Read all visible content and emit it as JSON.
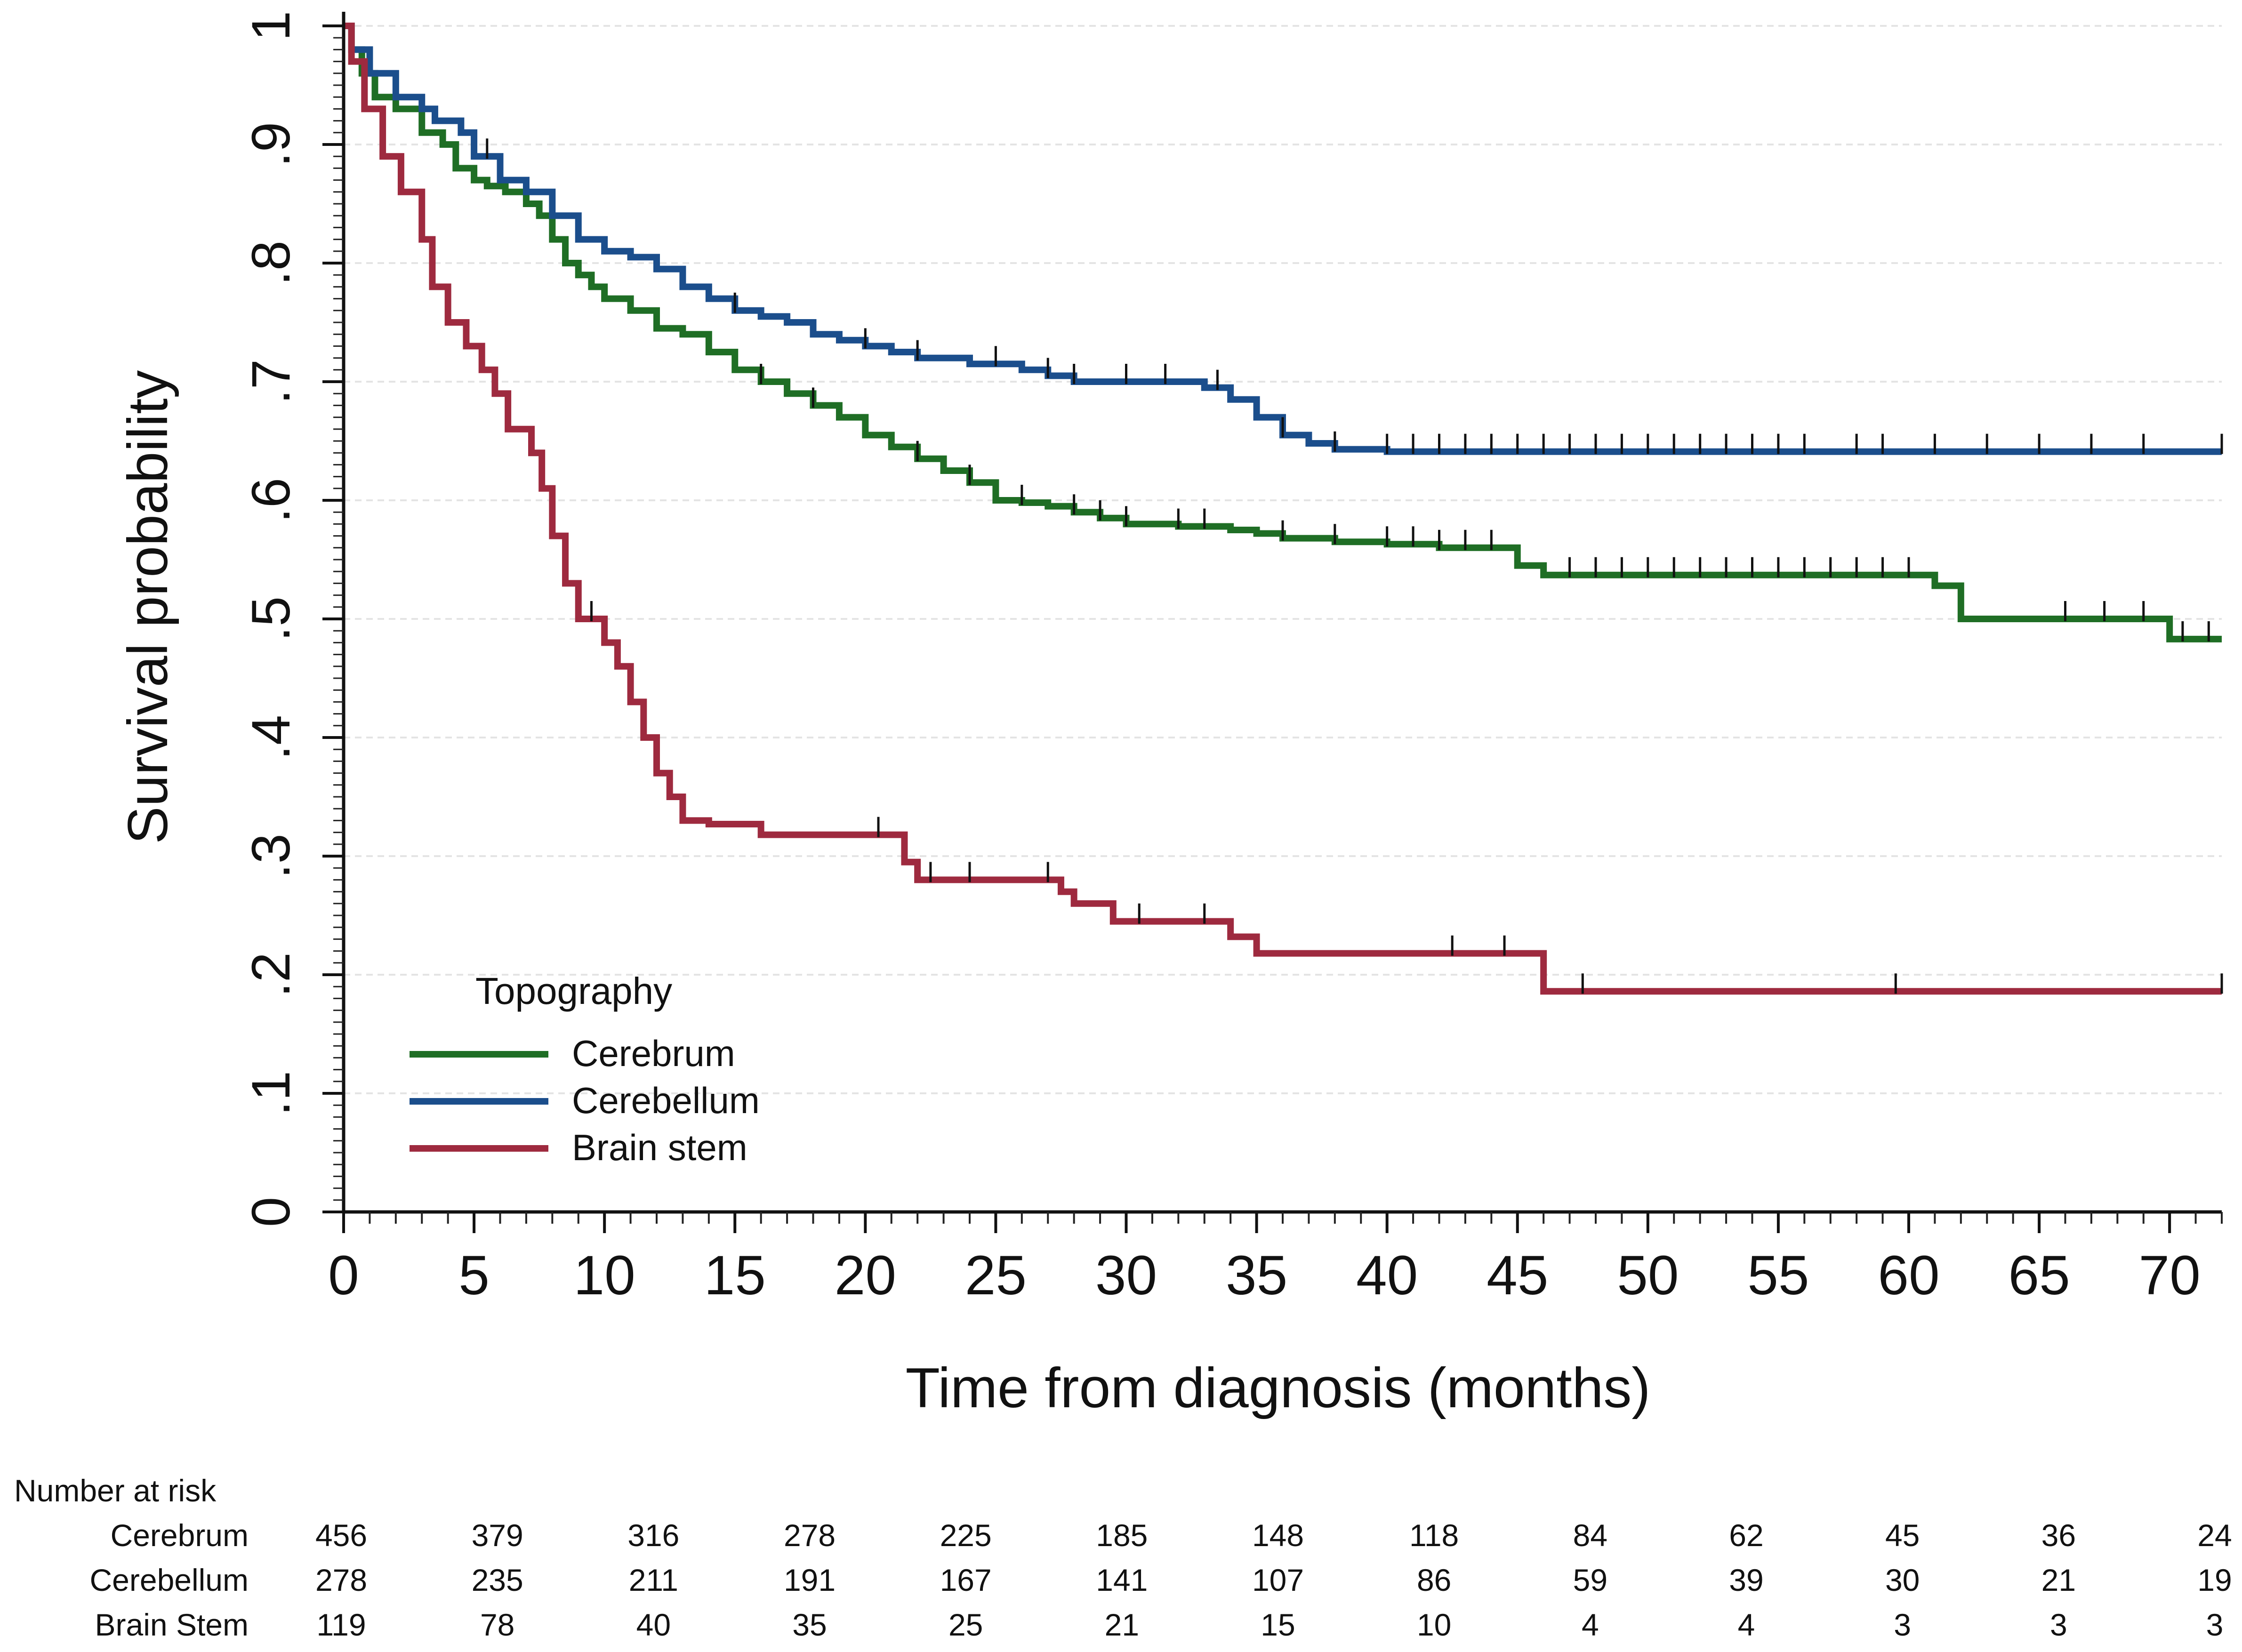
{
  "chart_data": {
    "type": "line",
    "step": true,
    "title": "",
    "xlabel": "Time from diagnosis (months)",
    "ylabel": "Survival probability",
    "xlim": [
      0,
      72
    ],
    "ylim": [
      0,
      1
    ],
    "x_ticks": [
      0,
      5,
      10,
      15,
      20,
      25,
      30,
      35,
      40,
      45,
      50,
      55,
      60,
      65,
      70
    ],
    "x_tick_labels": [
      "0",
      "5",
      "10",
      "15",
      "20",
      "25",
      "30",
      "35",
      "40",
      "45",
      "50",
      "55",
      "60",
      "65",
      "70"
    ],
    "y_ticks": [
      0,
      0.1,
      0.2,
      0.3,
      0.4,
      0.5,
      0.6,
      0.7,
      0.8,
      0.9,
      1
    ],
    "y_tick_labels": [
      "0",
      ".1",
      ".2",
      ".3",
      ".4",
      ".5",
      ".6",
      ".7",
      ".8",
      ".9",
      "1"
    ],
    "grid": "horizontal dashed",
    "legend": {
      "title": "Topography",
      "placement": "bottom-left"
    },
    "series": [
      {
        "name": "Cerebrum",
        "color": "#1f6e25",
        "x": [
          0,
          0.3,
          0.7,
          1.2,
          2,
          3,
          3.8,
          4.3,
          5,
          5.5,
          6.2,
          7,
          7.5,
          8,
          8.5,
          9,
          9.5,
          10,
          11,
          12,
          13,
          14,
          15,
          16,
          17,
          18,
          19,
          20,
          21,
          22,
          23,
          24,
          25,
          26,
          27,
          28,
          29,
          30,
          32,
          34,
          35,
          36,
          38,
          40,
          42,
          44,
          45,
          46,
          48,
          50,
          55,
          59.5,
          61,
          62,
          65,
          69,
          70,
          72
        ],
        "y": [
          1.0,
          0.98,
          0.96,
          0.94,
          0.93,
          0.91,
          0.9,
          0.88,
          0.87,
          0.865,
          0.86,
          0.85,
          0.84,
          0.82,
          0.8,
          0.79,
          0.78,
          0.77,
          0.76,
          0.745,
          0.74,
          0.725,
          0.71,
          0.7,
          0.69,
          0.68,
          0.67,
          0.655,
          0.645,
          0.635,
          0.625,
          0.615,
          0.6,
          0.598,
          0.595,
          0.59,
          0.585,
          0.58,
          0.578,
          0.575,
          0.572,
          0.568,
          0.565,
          0.563,
          0.56,
          0.56,
          0.545,
          0.537,
          0.537,
          0.537,
          0.537,
          0.537,
          0.528,
          0.5,
          0.5,
          0.5,
          0.483,
          0.483
        ],
        "censor_x": [
          16,
          18,
          22,
          24,
          26,
          28,
          29,
          30,
          32,
          33,
          36,
          38,
          40,
          41,
          42,
          43,
          44,
          47,
          48,
          49,
          50,
          51,
          52,
          53,
          54,
          55,
          56,
          57,
          58,
          59,
          60,
          66,
          67.5,
          69,
          70.5,
          71.5
        ]
      },
      {
        "name": "Cerebellum",
        "color": "#1b4e8c",
        "x": [
          0,
          0.3,
          1,
          2,
          3,
          3.5,
          4.5,
          5,
          6,
          7,
          8,
          9,
          10,
          11,
          12,
          13,
          14,
          15,
          16,
          17,
          18,
          19,
          20,
          21,
          22,
          24,
          26,
          27,
          28,
          30,
          32,
          33,
          34,
          35,
          36,
          37,
          38,
          40,
          45,
          50,
          60,
          72
        ],
        "y": [
          1.0,
          0.98,
          0.96,
          0.94,
          0.93,
          0.92,
          0.91,
          0.89,
          0.87,
          0.86,
          0.84,
          0.82,
          0.81,
          0.805,
          0.795,
          0.78,
          0.77,
          0.76,
          0.755,
          0.75,
          0.74,
          0.735,
          0.73,
          0.725,
          0.72,
          0.715,
          0.71,
          0.705,
          0.7,
          0.7,
          0.7,
          0.695,
          0.685,
          0.67,
          0.655,
          0.648,
          0.643,
          0.641,
          0.641,
          0.641,
          0.641,
          0.641
        ],
        "censor_x": [
          5.5,
          15,
          20,
          22,
          25,
          27,
          28,
          30,
          31.5,
          33.5,
          36,
          38,
          40,
          41,
          42,
          43,
          44,
          45,
          46,
          47,
          48,
          49,
          50,
          51,
          52,
          53,
          54,
          55,
          56,
          58,
          59,
          61,
          63,
          65,
          67,
          69,
          72
        ]
      },
      {
        "name": "Brain stem",
        "color": "#9e2a3f",
        "x": [
          0,
          0.3,
          0.8,
          1.5,
          2.2,
          3,
          3.4,
          4,
          4.7,
          5.3,
          5.8,
          6.3,
          7.2,
          7.6,
          8,
          8.5,
          9,
          10,
          10.5,
          11,
          11.5,
          12,
          12.5,
          13,
          14,
          16,
          20,
          21.5,
          22,
          26,
          27.5,
          28,
          29.5,
          31,
          34,
          35,
          37,
          40,
          45,
          46,
          50,
          55,
          60,
          72
        ],
        "y": [
          1.0,
          0.97,
          0.93,
          0.89,
          0.86,
          0.82,
          0.78,
          0.75,
          0.73,
          0.71,
          0.69,
          0.66,
          0.64,
          0.61,
          0.57,
          0.53,
          0.5,
          0.48,
          0.46,
          0.43,
          0.4,
          0.37,
          0.35,
          0.33,
          0.327,
          0.318,
          0.318,
          0.295,
          0.28,
          0.28,
          0.27,
          0.26,
          0.245,
          0.245,
          0.232,
          0.218,
          0.218,
          0.218,
          0.218,
          0.186,
          0.186,
          0.186,
          0.186,
          0.186
        ],
        "censor_x": [
          9.5,
          20.5,
          22.5,
          24,
          27,
          30.5,
          33,
          42.5,
          44.5,
          47.5,
          59.5,
          72
        ]
      }
    ],
    "risk_table": {
      "title": "Number at risk",
      "times": [
        0,
        6,
        12,
        18,
        24,
        30,
        36,
        42,
        48,
        54,
        60,
        66,
        72
      ],
      "rows": [
        {
          "label": "Cerebrum",
          "values": [
            "456",
            "379",
            "316",
            "278",
            "225",
            "185",
            "148",
            "118",
            "84",
            "62",
            "45",
            "36",
            "24"
          ]
        },
        {
          "label": "Cerebellum",
          "values": [
            "278",
            "235",
            "211",
            "191",
            "167",
            "141",
            "107",
            "86",
            "59",
            "39",
            "30",
            "21",
            "19"
          ]
        },
        {
          "label": "Brain Stem",
          "values": [
            "119",
            "78",
            "40",
            "35",
            "25",
            "21",
            "15",
            "10",
            "4",
            "4",
            "3",
            "3",
            "3"
          ]
        }
      ]
    }
  }
}
